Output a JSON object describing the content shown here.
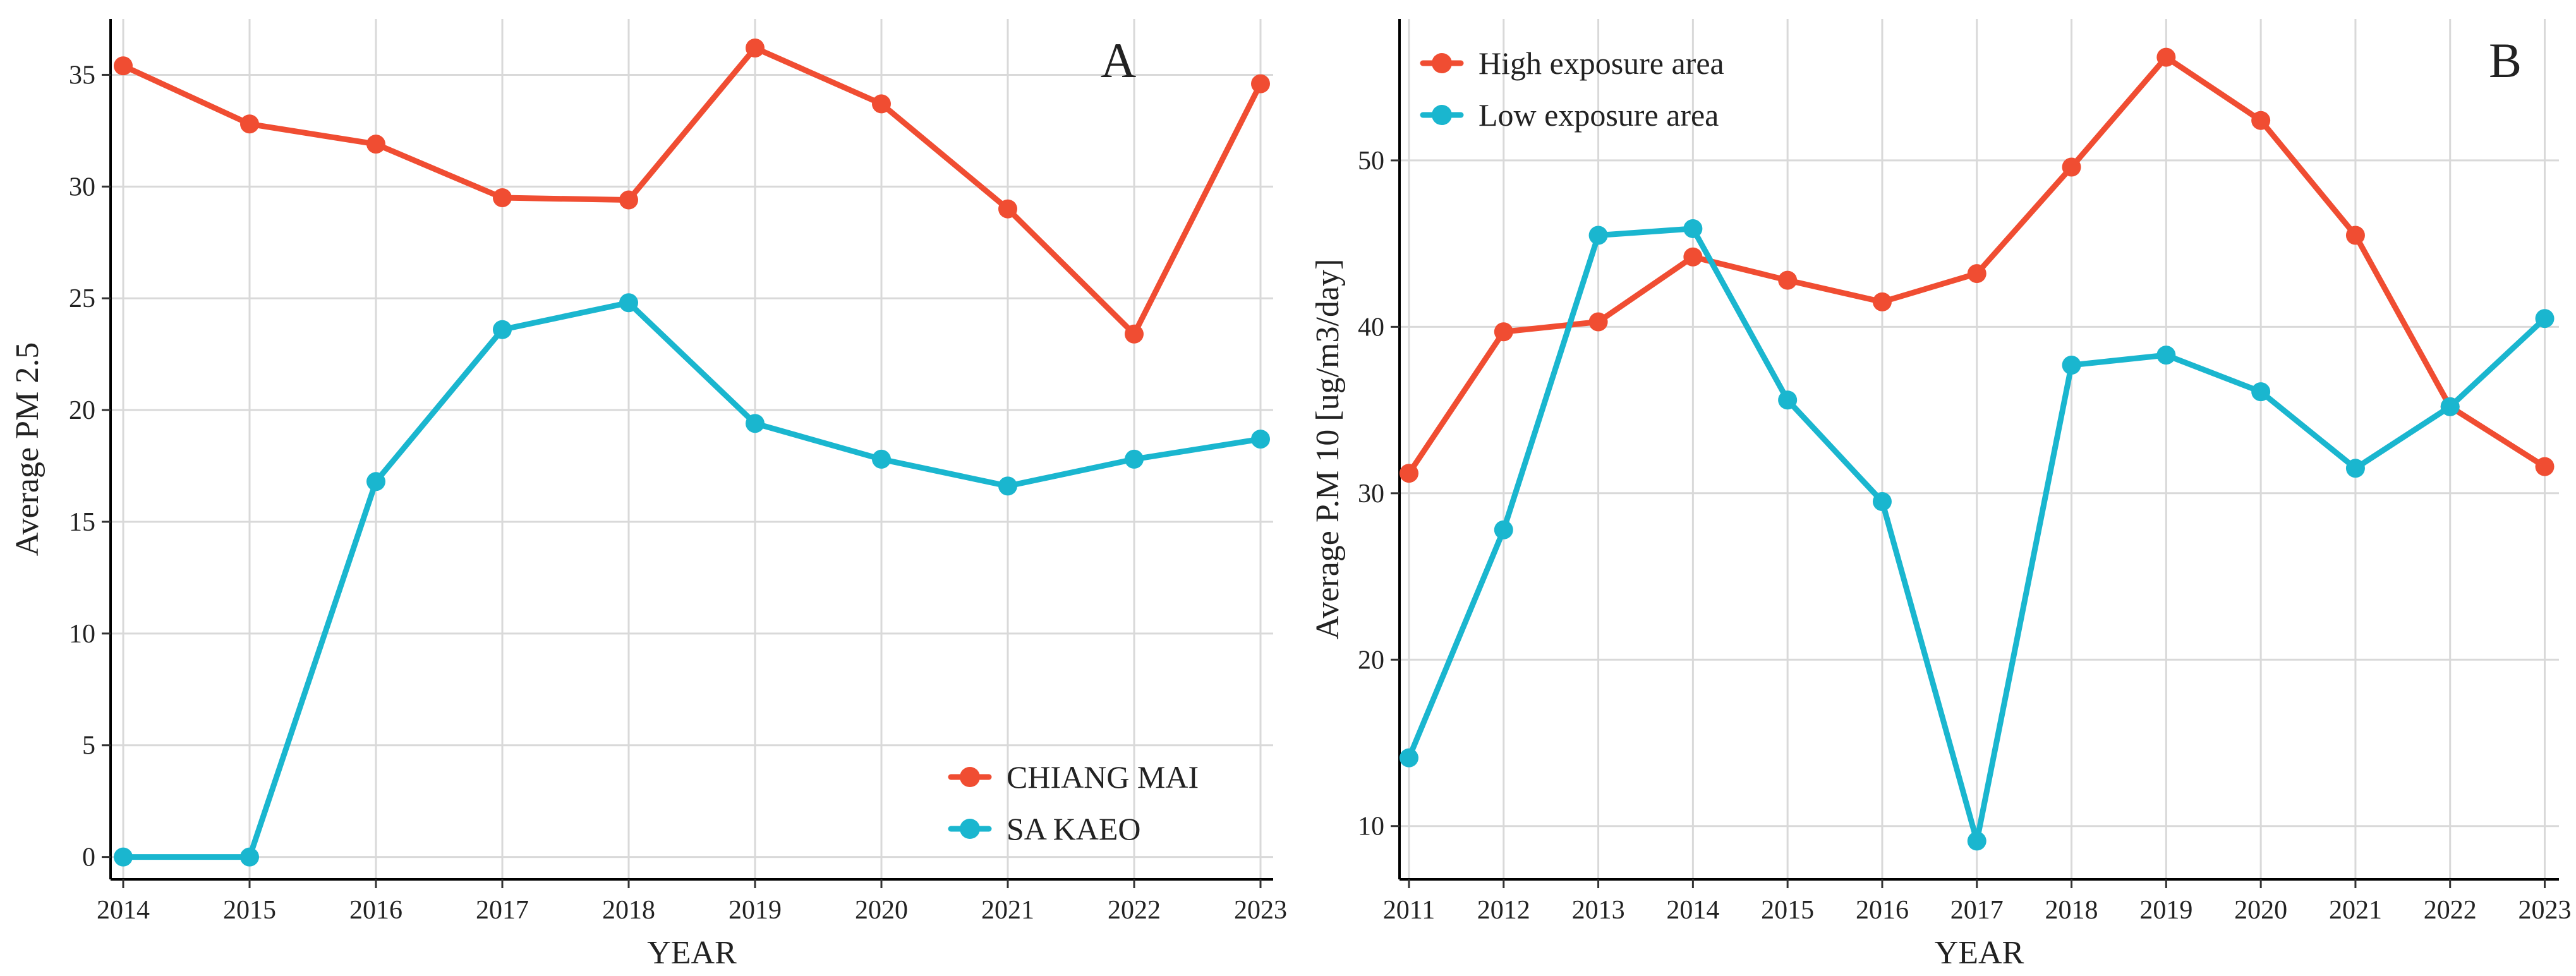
{
  "chart_data": [
    {
      "type": "line",
      "panel": "A",
      "title": "",
      "xlabel": "YEAR",
      "ylabel": "Average PM 2.5",
      "x": [
        2014,
        2015,
        2016,
        2017,
        2018,
        2019,
        2020,
        2021,
        2022,
        2023
      ],
      "xlim": [
        2013.9,
        2023.1
      ],
      "ylim": [
        -1,
        37.5
      ],
      "yticks": [
        0,
        5,
        10,
        15,
        20,
        25,
        30,
        35
      ],
      "grid": true,
      "legend_position": "bottom-right",
      "series": [
        {
          "name": "CHIANG MAI",
          "color": "#f04d32",
          "values": [
            35.4,
            32.8,
            31.9,
            29.5,
            29.4,
            36.2,
            33.7,
            29.0,
            23.4,
            34.6
          ]
        },
        {
          "name": "SA KAEO",
          "color": "#1ab6cf",
          "values": [
            0.0,
            0.0,
            16.8,
            23.6,
            24.8,
            19.4,
            17.8,
            16.6,
            17.8,
            18.7
          ]
        }
      ]
    },
    {
      "type": "line",
      "panel": "B",
      "title": "",
      "xlabel": "YEAR",
      "ylabel": "Average P.M 10 [ug/m3/day]",
      "x": [
        2011,
        2012,
        2013,
        2014,
        2015,
        2016,
        2017,
        2018,
        2019,
        2020,
        2021,
        2022,
        2023
      ],
      "xlim": [
        2010.9,
        2023.15
      ],
      "ylim": [
        6.8,
        58.5
      ],
      "yticks": [
        10,
        20,
        30,
        40,
        50
      ],
      "grid": true,
      "legend_position": "top-left",
      "series": [
        {
          "name": "High exposure area",
          "color": "#f04d32",
          "values": [
            31.2,
            39.7,
            40.3,
            44.2,
            42.8,
            41.5,
            43.2,
            49.6,
            56.2,
            52.4,
            45.5,
            35.2,
            31.6
          ]
        },
        {
          "name": "Low exposure area",
          "color": "#1ab6cf",
          "values": [
            14.1,
            27.8,
            45.5,
            45.9,
            35.6,
            29.5,
            9.1,
            37.7,
            38.3,
            36.1,
            31.5,
            35.2,
            40.5
          ]
        }
      ]
    }
  ]
}
